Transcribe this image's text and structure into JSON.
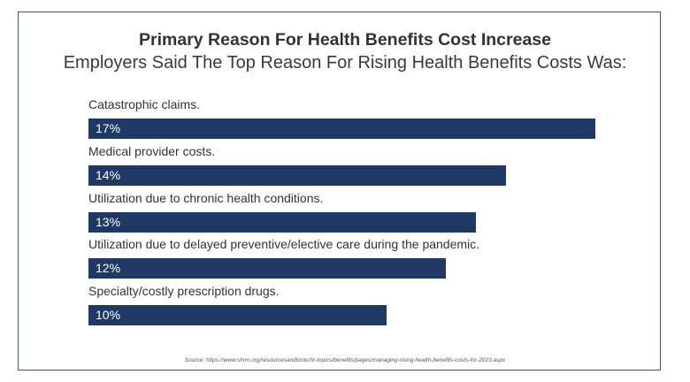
{
  "chart_data": {
    "type": "bar",
    "orientation": "horizontal",
    "title": "Primary Reason For Health Benefits Cost Increase",
    "subtitle": "Employers Said The Top Reason For Rising Health Benefits Costs Was:",
    "categories": [
      "Catastrophic claims.",
      "Medical provider costs.",
      "Utilization due to chronic health conditions.",
      "Utilization due to delayed preventive/elective care during the pandemic.",
      "Specialty/costly prescription drugs."
    ],
    "values": [
      17,
      14,
      13,
      12,
      10
    ],
    "value_labels": [
      "17%",
      "14%",
      "13%",
      "12%",
      "10%"
    ],
    "unit": "%",
    "grid": false,
    "bar_color": "#1f3864",
    "source": "Source: https://www.shrm.org/resourcesandtools/hr-topics/benefits/pages/managing-rising-health-benefits-costs-for-2023.aspx"
  }
}
